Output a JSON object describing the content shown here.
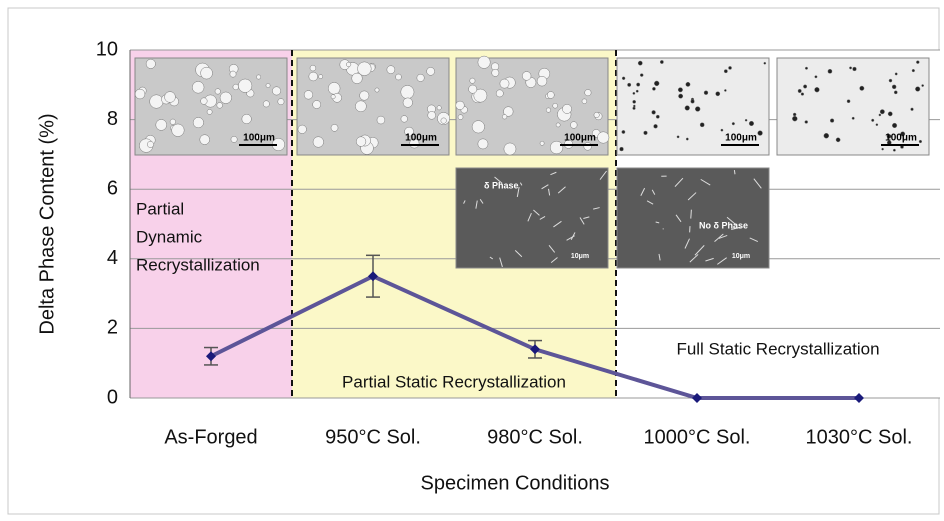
{
  "chart_data": {
    "type": "line",
    "x_label": "Specimen Conditions",
    "y_label": "Delta Phase Content (%)",
    "categories": [
      "As-Forged",
      "950°C Sol.",
      "980°C Sol.",
      "1000°C Sol.",
      "1030°C Sol."
    ],
    "series": [
      {
        "color": "#5d5598",
        "values": [
          1.2,
          3.5,
          1.4,
          0,
          0
        ],
        "errors": [
          0.25,
          0.6,
          0.25,
          null,
          null
        ]
      }
    ],
    "ylim": [
      0,
      10
    ],
    "yticks": [
      0,
      2,
      4,
      6,
      8,
      10
    ],
    "grid": true,
    "regions": [
      {
        "label": [
          "Partial",
          "Dynamic",
          "Recrystallization"
        ],
        "color": "#f8d1ea"
      },
      {
        "label": [
          "Partial Static Recrystallization"
        ],
        "color": "#fbf8c8"
      },
      {
        "label": [
          "Full Static Recrystallization"
        ],
        "color": "#ffffff"
      }
    ],
    "micrographs": [
      {
        "scale": "100μm"
      },
      {
        "scale": "100μm"
      },
      {
        "scale": "100μm"
      },
      {
        "scale": "100μm"
      },
      {
        "scale": "100μm"
      },
      {
        "scale": "10μm",
        "note": "δ Phase"
      },
      {
        "scale": "10μm",
        "note": "No δ Phase"
      }
    ]
  }
}
